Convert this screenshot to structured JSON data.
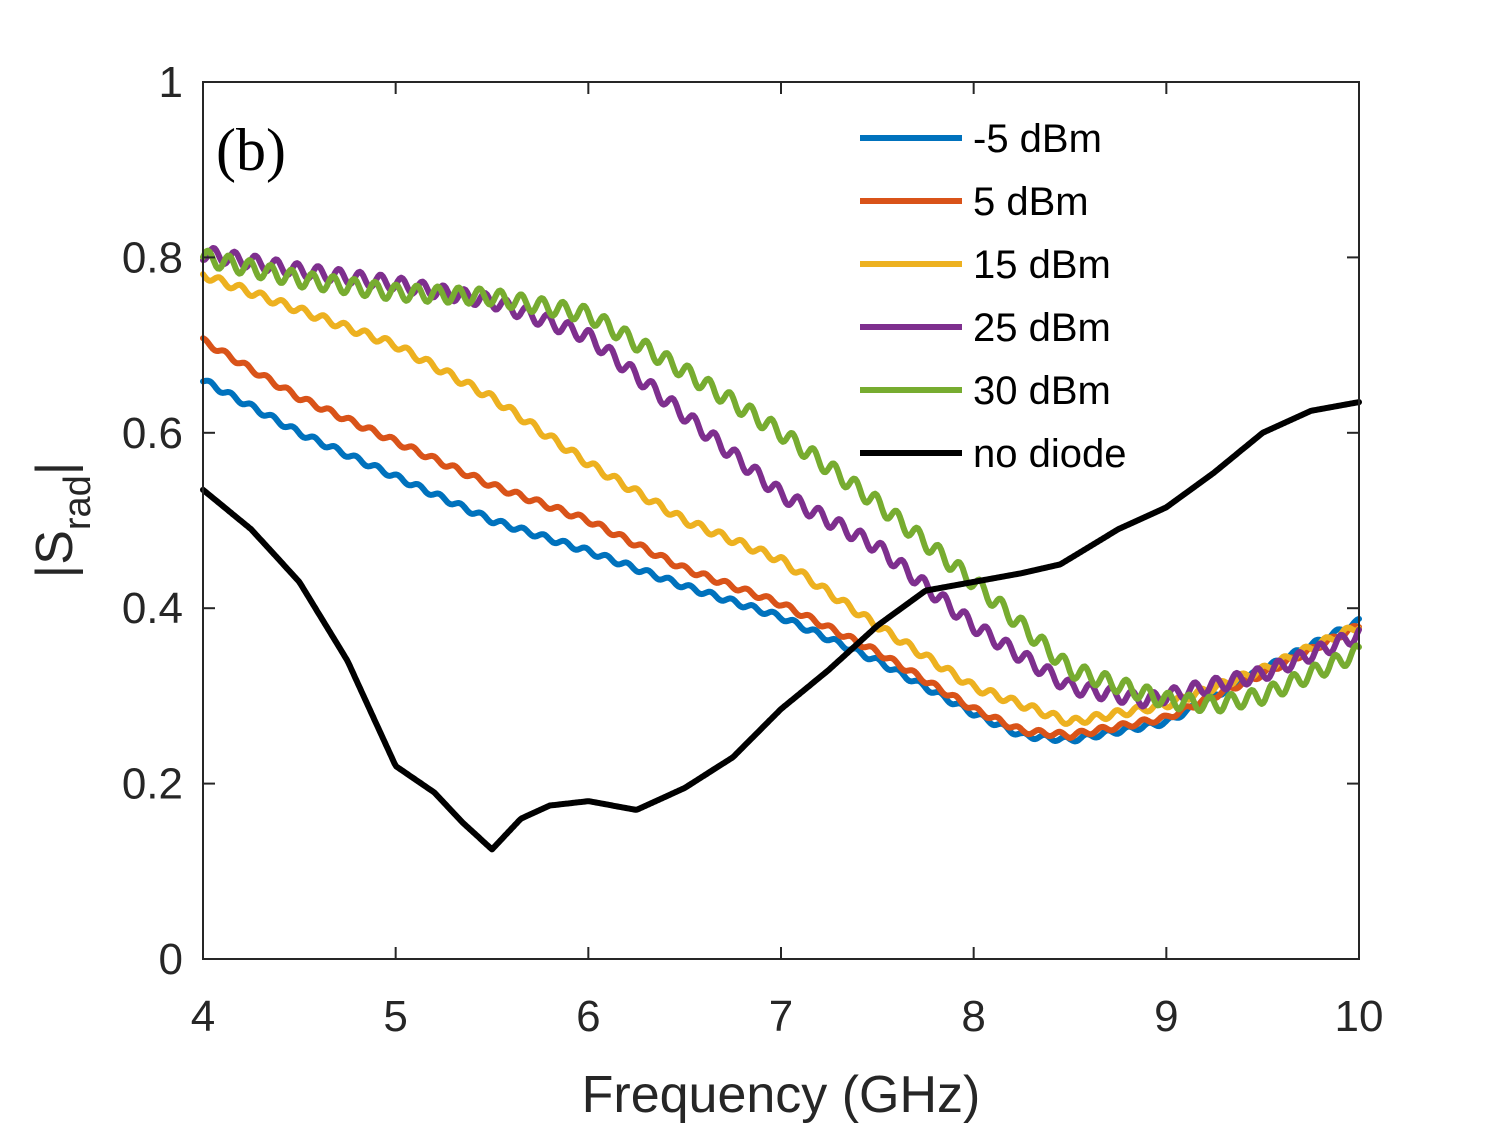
{
  "chart_data": {
    "type": "line",
    "panel_label": "(b)",
    "xlabel": "Frequency (GHz)",
    "ylabel_main": "|S",
    "ylabel_sub": "rad",
    "ylabel_end": "|",
    "xlim": [
      4,
      10
    ],
    "ylim": [
      0,
      1
    ],
    "xticks": [
      4,
      5,
      6,
      7,
      8,
      9,
      10
    ],
    "yticks": [
      0,
      0.2,
      0.4,
      0.6,
      0.8,
      1
    ],
    "ytick_labels": [
      "0",
      "0.2",
      "0.4",
      "0.6",
      "0.8",
      "1"
    ],
    "grid": false,
    "legend_position": "top-right",
    "series": [
      {
        "name": "-5 dBm",
        "color": "#0072BD",
        "ripple": 0.003,
        "x": [
          4.0,
          4.5,
          5.0,
          5.5,
          6.0,
          6.5,
          7.0,
          7.5,
          8.0,
          8.25,
          8.5,
          9.0,
          9.5,
          10.0
        ],
        "y": [
          0.66,
          0.6,
          0.55,
          0.5,
          0.465,
          0.425,
          0.39,
          0.34,
          0.28,
          0.255,
          0.25,
          0.27,
          0.33,
          0.385
        ]
      },
      {
        "name": "5 dBm",
        "color": "#D95319",
        "ripple": 0.003,
        "x": [
          4.0,
          4.5,
          5.0,
          5.5,
          6.0,
          6.5,
          7.0,
          7.5,
          8.0,
          8.25,
          8.5,
          9.0,
          9.5,
          10.0
        ],
        "y": [
          0.705,
          0.64,
          0.59,
          0.54,
          0.5,
          0.445,
          0.405,
          0.35,
          0.285,
          0.26,
          0.255,
          0.275,
          0.325,
          0.38
        ]
      },
      {
        "name": "15 dBm",
        "color": "#EDB120",
        "ripple": 0.004,
        "x": [
          4.0,
          4.5,
          5.0,
          5.5,
          6.0,
          6.5,
          7.0,
          7.5,
          8.0,
          8.5,
          9.0,
          9.5,
          10.0
        ],
        "y": [
          0.78,
          0.74,
          0.7,
          0.64,
          0.565,
          0.5,
          0.455,
          0.38,
          0.31,
          0.27,
          0.29,
          0.33,
          0.38
        ]
      },
      {
        "name": "25 dBm",
        "color": "#7E2F8E",
        "ripple": 0.008,
        "x": [
          4.0,
          4.5,
          5.0,
          5.5,
          6.0,
          6.5,
          7.0,
          7.5,
          8.0,
          8.5,
          8.9,
          9.5,
          10.0
        ],
        "y": [
          0.805,
          0.785,
          0.77,
          0.75,
          0.71,
          0.62,
          0.53,
          0.47,
          0.38,
          0.31,
          0.295,
          0.325,
          0.37
        ]
      },
      {
        "name": "30 dBm",
        "color": "#77AC30",
        "ripple": 0.009,
        "x": [
          4.0,
          4.5,
          5.0,
          5.5,
          6.0,
          6.5,
          7.0,
          7.5,
          8.0,
          8.5,
          9.0,
          9.25,
          9.5,
          10.0
        ],
        "y": [
          0.8,
          0.775,
          0.76,
          0.755,
          0.735,
          0.67,
          0.6,
          0.52,
          0.43,
          0.33,
          0.295,
          0.29,
          0.3,
          0.35
        ]
      },
      {
        "name": "no diode",
        "color": "#000000",
        "ripple": 0,
        "x": [
          4.0,
          4.25,
          4.5,
          4.75,
          5.0,
          5.2,
          5.35,
          5.5,
          5.65,
          5.8,
          6.0,
          6.25,
          6.5,
          6.75,
          7.0,
          7.25,
          7.5,
          7.75,
          8.0,
          8.25,
          8.45,
          8.75,
          9.0,
          9.25,
          9.5,
          9.75,
          10.0
        ],
        "y": [
          0.535,
          0.49,
          0.43,
          0.34,
          0.22,
          0.19,
          0.155,
          0.125,
          0.16,
          0.175,
          0.18,
          0.17,
          0.195,
          0.23,
          0.285,
          0.33,
          0.38,
          0.42,
          0.43,
          0.44,
          0.45,
          0.49,
          0.515,
          0.555,
          0.6,
          0.625,
          0.635
        ]
      }
    ]
  }
}
